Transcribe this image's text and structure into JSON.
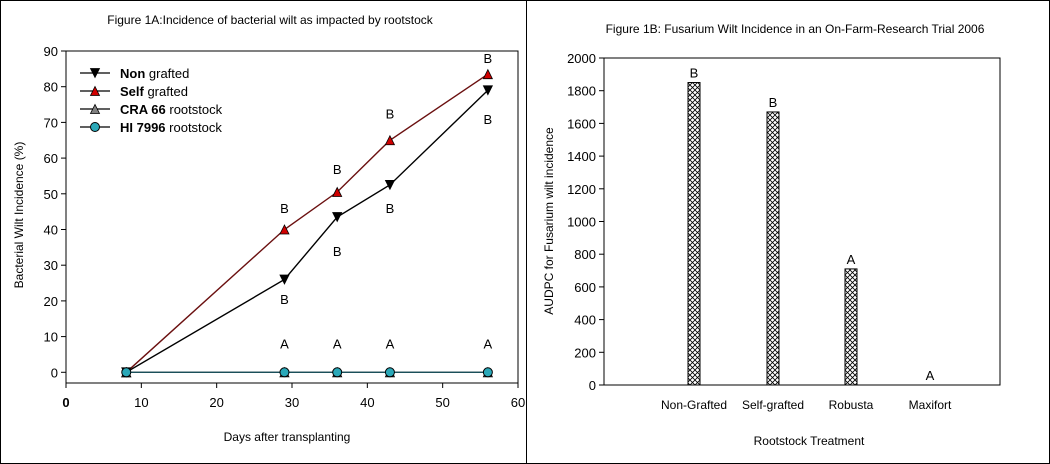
{
  "chart_data": [
    {
      "type": "line",
      "title": "Figure 1A:Incidence of bacterial wilt as impacted by rootstock",
      "xlabel": "Days after transplanting",
      "ylabel": "Bacterial Wilt Incidence (%)",
      "xlim": [
        0,
        60
      ],
      "ylim": [
        -3,
        90
      ],
      "xticks": [
        "0",
        "10",
        "20",
        "30",
        "40",
        "50",
        "60"
      ],
      "yticks": [
        "0",
        "10",
        "20",
        "30",
        "40",
        "50",
        "60",
        "70",
        "80",
        "90"
      ],
      "grid": false,
      "legend_position": "top-left",
      "x": [
        8,
        29,
        36,
        43,
        56
      ],
      "series": [
        {
          "name_bold": "Non",
          "name_rest": " grafted",
          "marker": "triangle-down",
          "color": "#000000",
          "values": [
            0,
            26,
            43.5,
            52.5,
            79
          ]
        },
        {
          "name_bold": "Self",
          "name_rest": " grafted",
          "marker": "triangle-up",
          "color": "#d00000",
          "values": [
            0,
            40,
            50.5,
            65,
            83.5
          ]
        },
        {
          "name_bold": "CRA 66",
          "name_rest": " rootstock",
          "marker": "triangle-up",
          "color": "#808080",
          "values": [
            0,
            0,
            0,
            0,
            0
          ]
        },
        {
          "name_bold": "HI 7996",
          "name_rest": " rootstock",
          "marker": "circle",
          "color": "#2aa8b8",
          "values": [
            0,
            0,
            0,
            0,
            0
          ]
        }
      ],
      "annotations": [
        {
          "text": "B",
          "x": 29,
          "y": 46
        },
        {
          "text": "B",
          "x": 29,
          "y": 20.5
        },
        {
          "text": "B",
          "x": 36,
          "y": 57
        },
        {
          "text": "B",
          "x": 36,
          "y": 34
        },
        {
          "text": "B",
          "x": 43,
          "y": 72.5
        },
        {
          "text": "B",
          "x": 43,
          "y": 46
        },
        {
          "text": "B",
          "x": 56,
          "y": 88
        },
        {
          "text": "B",
          "x": 56,
          "y": 71
        },
        {
          "text": "A",
          "x": 29,
          "y": 8
        },
        {
          "text": "A",
          "x": 36,
          "y": 8
        },
        {
          "text": "A",
          "x": 43,
          "y": 8
        },
        {
          "text": "A",
          "x": 56,
          "y": 8
        }
      ]
    },
    {
      "type": "bar",
      "title": "Figure 1B: Fusarium Wilt Incidence in an On-Farm-Research Trial 2006",
      "xlabel": "Rootstock Treatment",
      "ylabel": "AUDPC for Fusarium wilt incidence",
      "ylim": [
        0,
        2000
      ],
      "yticks": [
        "0",
        "200",
        "400",
        "600",
        "800",
        "1000",
        "1200",
        "1400",
        "1600",
        "1800",
        "2000"
      ],
      "grid": false,
      "categories": [
        "Non-Grafted",
        "Self-grafted",
        "Robusta",
        "Maxifort"
      ],
      "values": [
        1850,
        1670,
        710,
        0
      ],
      "bar_labels": [
        "B",
        "B",
        "A",
        "A"
      ]
    }
  ]
}
